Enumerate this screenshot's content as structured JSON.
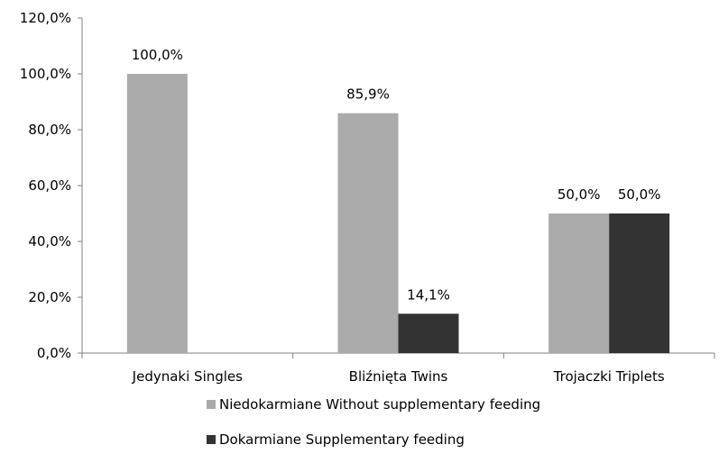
{
  "chart_data": {
    "type": "bar",
    "categories": [
      "Jedynaki Singles",
      "Bliźnięta Twins",
      "Trojaczki Triplets"
    ],
    "series": [
      {
        "name": "Niedokarmiane Without supplementary feeding",
        "values": [
          100.0,
          85.9,
          50.0
        ],
        "labels": [
          "100,0%",
          "85,9%",
          "50,0%"
        ],
        "color": "#aaaaaa"
      },
      {
        "name": "Dokarmiane Supplementary feeding",
        "values": [
          0,
          14.1,
          50.0
        ],
        "labels": [
          "",
          "14,1%",
          "50,0%"
        ],
        "color": "#333333"
      }
    ],
    "ylim": [
      0,
      120
    ],
    "yticks": [
      0,
      20,
      40,
      60,
      80,
      100,
      120
    ],
    "ytick_labels": [
      "0,0%",
      "20,0%",
      "40,0%",
      "60,0%",
      "80,0%",
      "100,0%",
      "120,0%"
    ],
    "grid": false,
    "legend_position": "bottom"
  }
}
